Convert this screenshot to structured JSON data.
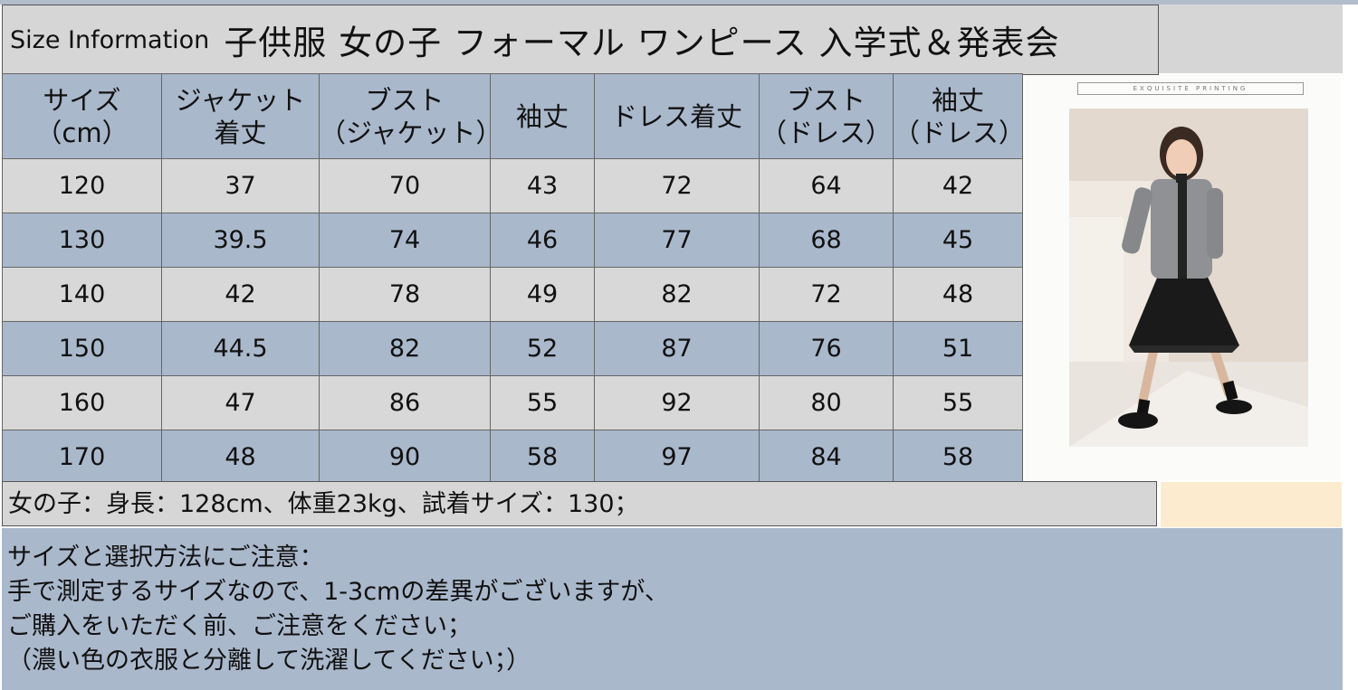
{
  "title": {
    "en": "Size Information",
    "jp": "子供服 女の子 フォーマル ワンピース 入学式＆発表会"
  },
  "table": {
    "headers": [
      [
        "サイズ",
        "（cm）"
      ],
      [
        "ジャケット",
        "着丈"
      ],
      [
        "ブスト",
        "（ジャケット）"
      ],
      [
        "袖丈",
        ""
      ],
      [
        "ドレス着丈",
        ""
      ],
      [
        "ブスト",
        "（ドレス）"
      ],
      [
        "袖丈",
        "（ドレス）"
      ]
    ],
    "rows": [
      [
        "120",
        "37",
        "70",
        "43",
        "72",
        "64",
        "42"
      ],
      [
        "130",
        "39.5",
        "74",
        "46",
        "77",
        "68",
        "45"
      ],
      [
        "140",
        "42",
        "78",
        "49",
        "82",
        "72",
        "48"
      ],
      [
        "150",
        "44.5",
        "82",
        "52",
        "87",
        "76",
        "51"
      ],
      [
        "160",
        "47",
        "86",
        "55",
        "92",
        "80",
        "55"
      ],
      [
        "170",
        "48",
        "90",
        "58",
        "97",
        "84",
        "58"
      ]
    ]
  },
  "photo": {
    "banner": "EXQUISITE PRINTING"
  },
  "fit_note": "女の子：身長：128cm、体重23kg、試着サイズ：130；",
  "notes": [
    "サイズと選択方法にご注意：",
    "手で測定するサイズなので、1-3cmの差異がございますが、",
    "ご購入をいただく前、ご注意をください；",
    "（濃い色の衣服と分離して洗濯してください；）"
  ]
}
